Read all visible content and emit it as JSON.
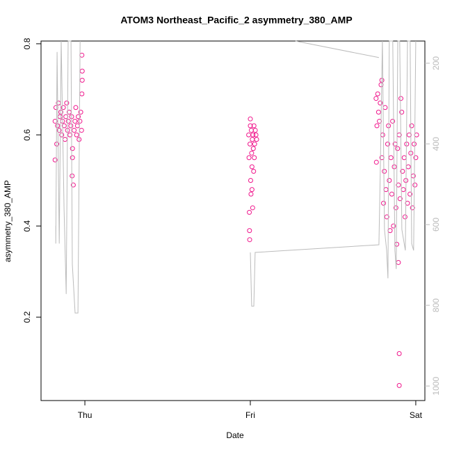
{
  "chart_data": {
    "type": "scatter",
    "title": "ATOM3 Northeast_Pacific_2 asymmetry_380_AMP",
    "x_label": "Date",
    "y_label": "asymmetry_380_AMP",
    "xlim": [
      -0.265,
      2.055
    ],
    "ylim": [
      0.017,
      0.806
    ],
    "y2lim": [
      1036,
      145
    ],
    "xticks": [
      {
        "value": 0,
        "label": "Thu"
      },
      {
        "value": 1,
        "label": "Fri"
      },
      {
        "value": 2,
        "label": "Sat"
      }
    ],
    "yticks": [
      0.2,
      0.4,
      0.6,
      0.8
    ],
    "y2ticks": [
      200,
      400,
      600,
      800,
      1000
    ],
    "series": [
      {
        "color": "#f0168c",
        "x": [
          -0.18,
          -0.175,
          -0.17,
          -0.165,
          -0.16,
          -0.155,
          -0.15,
          -0.145,
          -0.14,
          -0.135,
          -0.13,
          -0.125,
          -0.12,
          -0.115,
          -0.11,
          -0.105,
          -0.1,
          -0.095,
          -0.09,
          -0.085,
          -0.08,
          -0.075,
          -0.07,
          -0.065,
          -0.06,
          -0.055,
          -0.05,
          -0.045,
          -0.04,
          -0.035,
          -0.03,
          -0.025,
          -0.02,
          -0.018,
          -0.018,
          -0.016,
          -0.016,
          -0.077,
          -0.075,
          -0.18,
          0.99,
          0.992,
          0.994,
          0.996,
          0.998,
          1.0,
          1.002,
          1.004,
          1.006,
          1.008,
          1.01,
          1.012,
          1.014,
          1.016,
          1.018,
          1.02,
          1.022,
          1.024,
          1.026,
          1.03,
          1.034,
          1.038,
          1.0,
          0.995,
          1.01,
          1.76,
          1.765,
          1.77,
          1.775,
          1.78,
          1.785,
          1.79,
          1.795,
          1.8,
          1.805,
          1.81,
          1.815,
          1.82,
          1.825,
          1.83,
          1.835,
          1.84,
          1.845,
          1.85,
          1.855,
          1.86,
          1.865,
          1.87,
          1.875,
          1.88,
          1.885,
          1.89,
          1.895,
          1.9,
          1.905,
          1.91,
          1.915,
          1.92,
          1.925,
          1.93,
          1.935,
          1.94,
          1.945,
          1.95,
          1.955,
          1.96,
          1.965,
          1.97,
          1.975,
          1.98,
          1.985,
          1.99,
          1.995,
          2.0,
          2.005,
          1.895,
          1.9,
          1.9,
          1.795,
          1.762
        ],
        "values": [
          0.63,
          0.66,
          0.58,
          0.62,
          0.67,
          0.61,
          0.64,
          0.65,
          0.6,
          0.63,
          0.66,
          0.62,
          0.59,
          0.64,
          0.67,
          0.61,
          0.63,
          0.65,
          0.6,
          0.62,
          0.64,
          0.57,
          0.49,
          0.61,
          0.63,
          0.66,
          0.6,
          0.62,
          0.64,
          0.59,
          0.63,
          0.65,
          0.61,
          0.775,
          0.69,
          0.72,
          0.74,
          0.51,
          0.55,
          0.545,
          0.6,
          0.55,
          0.43,
          0.37,
          0.58,
          0.62,
          0.5,
          0.47,
          0.61,
          0.56,
          0.53,
          0.59,
          0.44,
          0.6,
          0.57,
          0.52,
          0.62,
          0.55,
          0.58,
          0.61,
          0.6,
          0.59,
          0.635,
          0.39,
          0.48,
          0.68,
          0.62,
          0.69,
          0.65,
          0.63,
          0.67,
          0.71,
          0.55,
          0.6,
          0.45,
          0.52,
          0.66,
          0.48,
          0.42,
          0.58,
          0.62,
          0.5,
          0.39,
          0.55,
          0.47,
          0.63,
          0.4,
          0.53,
          0.58,
          0.44,
          0.36,
          0.57,
          0.49,
          0.6,
          0.46,
          0.68,
          0.65,
          0.52,
          0.48,
          0.55,
          0.42,
          0.5,
          0.58,
          0.45,
          0.53,
          0.6,
          0.47,
          0.56,
          0.62,
          0.44,
          0.51,
          0.58,
          0.49,
          0.55,
          0.6,
          0.32,
          0.12,
          0.05,
          0.72,
          0.54
        ]
      },
      {
        "type": "line",
        "axis": "y2",
        "color": "#bbbbbb",
        "x": [
          -0.176,
          -0.176,
          -0.168,
          -0.155,
          -0.143,
          -0.126,
          -0.113,
          -0.101,
          -0.084,
          -0.076,
          -0.059,
          -0.042,
          -0.029,
          null,
          1.0,
          1.008,
          1.021,
          1.029,
          1.777,
          1.785,
          1.798,
          1.811,
          1.824,
          1.832,
          1.84,
          1.861,
          1.874,
          1.882,
          1.891,
          1.903,
          1.916,
          1.937,
          1.95,
          1.966,
          1.975,
          1.987,
          2.0,
          null,
          1.273,
          1.777
        ],
        "values": [
          603,
          647,
          172,
          647,
          145,
          560,
          772,
          145,
          145,
          698,
          819,
          819,
          145,
          null,
          669,
          802,
          802,
          669,
          650,
          474,
          145,
          612,
          664,
          733,
          145,
          145,
          664,
          710,
          145,
          145,
          612,
          664,
          145,
          145,
          647,
          664,
          145,
          null,
          145,
          186
        ]
      }
    ]
  }
}
